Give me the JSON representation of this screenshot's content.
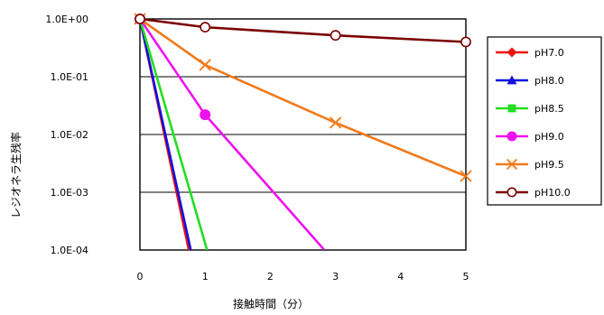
{
  "chart_data": {
    "type": "line",
    "title": "",
    "xlabel": "接触時間（分）",
    "ylabel": "レジオネラ生残率",
    "xlim": [
      0,
      5
    ],
    "ylim": [
      0.0001,
      1
    ],
    "yscale": "log",
    "grid": "horizontal",
    "legend_position": "right",
    "x_ticks": [
      "0",
      "1",
      "2",
      "3",
      "4",
      "5"
    ],
    "y_ticks": [
      "1.0E-04",
      "1.0E-03",
      "1.0E-02",
      "1.0E-01",
      "1.0E+00"
    ],
    "series": [
      {
        "name": "pH7.0",
        "color": "#ee1111",
        "marker": "diamond",
        "x": [
          0,
          0.75
        ],
        "y": [
          1,
          0.0001
        ]
      },
      {
        "name": "pH8.0",
        "color": "#1111dd",
        "marker": "triangle",
        "x": [
          0,
          0.78
        ],
        "y": [
          1,
          0.0001
        ]
      },
      {
        "name": "pH8.5",
        "color": "#22dd22",
        "marker": "square",
        "x": [
          0,
          1.03
        ],
        "y": [
          1,
          0.0001
        ]
      },
      {
        "name": "pH9.0",
        "color": "#ee11ee",
        "marker": "circle",
        "x": [
          0,
          1,
          2.83
        ],
        "y": [
          1,
          0.022,
          0.0001
        ]
      },
      {
        "name": "pH9.5",
        "color": "#f07a1a",
        "marker": "x",
        "x": [
          0,
          1,
          3,
          5
        ],
        "y": [
          1,
          0.16,
          0.016,
          0.0019
        ]
      },
      {
        "name": "pH10.0",
        "color": "#7a0000",
        "marker": "circle-open",
        "x": [
          0,
          1,
          3,
          5
        ],
        "y": [
          1,
          0.72,
          0.52,
          0.4
        ]
      }
    ]
  }
}
